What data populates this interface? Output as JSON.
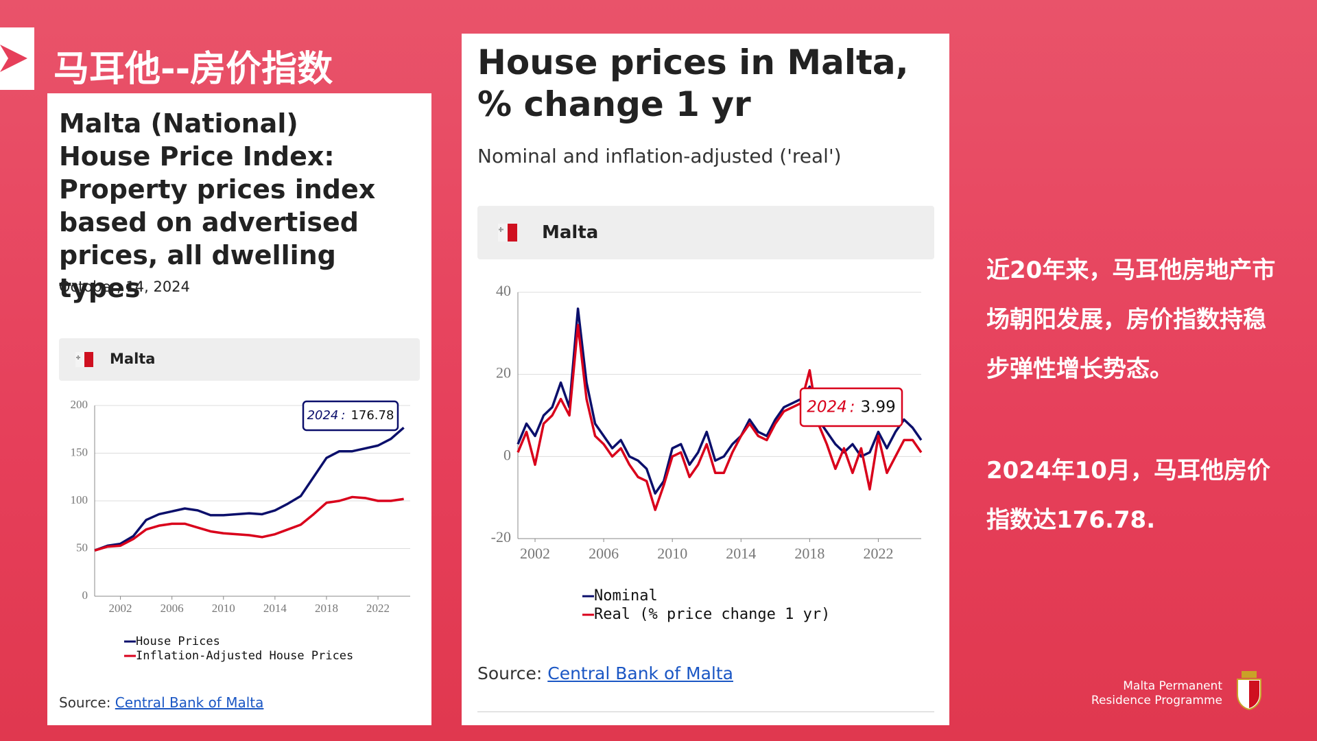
{
  "slide": {
    "title": "马耳他--房价指数",
    "paragraphs": [
      [
        "近20年来，马耳他房地产市",
        "场朝阳发展，房价指数持稳",
        "步弹性增长势态。"
      ],
      [
        "2024年10月，马耳他房价",
        "指数达176.78."
      ]
    ],
    "footer": [
      "Malta Permanent",
      "Residence Programme"
    ]
  },
  "chart_data": [
    {
      "type": "line",
      "title": "Malta (National) House Price Index: Property prices index based on advertised prices, all dwelling types",
      "date": "October, 14, 2024",
      "country": "Malta",
      "source_label": "Source:",
      "source_link": "Central Bank of Malta",
      "x": [
        2000,
        2001,
        2002,
        2003,
        2004,
        2005,
        2006,
        2007,
        2008,
        2009,
        2010,
        2011,
        2012,
        2013,
        2014,
        2015,
        2016,
        2017,
        2018,
        2019,
        2020,
        2021,
        2022,
        2023,
        2024
      ],
      "series": [
        {
          "name": "House Prices",
          "color": "#0b0f6b",
          "values": [
            48,
            53,
            55,
            63,
            80,
            86,
            89,
            92,
            90,
            85,
            85,
            86,
            87,
            86,
            90,
            97,
            105,
            125,
            145,
            152,
            152,
            155,
            158,
            165,
            176.78
          ]
        },
        {
          "name": "Inflation-Adjusted House Prices",
          "color": "#d9001b",
          "values": [
            48,
            52,
            53,
            60,
            70,
            74,
            76,
            76,
            72,
            68,
            66,
            65,
            64,
            62,
            65,
            70,
            75,
            86,
            98,
            100,
            104,
            103,
            100,
            100,
            102
          ]
        }
      ],
      "xlim": [
        2000,
        2024.5
      ],
      "ylim": [
        0,
        200
      ],
      "xticks": [
        2002,
        2006,
        2010,
        2014,
        2018,
        2022
      ],
      "yticks": [
        0,
        50,
        100,
        150,
        200
      ],
      "grid": true,
      "tooltip": {
        "x": 2024,
        "separator": ":",
        "value": 176.78
      }
    },
    {
      "type": "line",
      "title": "House prices in Malta, % change 1 yr",
      "subtitle": "Nominal and inflation-adjusted ('real')",
      "country": "Malta",
      "source_label": "Source:",
      "source_link": "Central Bank of Malta",
      "x": [
        2001,
        2001.5,
        2002,
        2002.5,
        2003,
        2003.5,
        2004,
        2004.5,
        2005,
        2005.5,
        2006,
        2006.5,
        2007,
        2007.5,
        2008,
        2008.5,
        2009,
        2009.5,
        2010,
        2010.5,
        2011,
        2011.5,
        2012,
        2012.5,
        2013,
        2013.5,
        2014,
        2014.5,
        2015,
        2015.5,
        2016,
        2016.5,
        2017,
        2017.5,
        2018,
        2018.5,
        2019,
        2019.5,
        2020,
        2020.5,
        2021,
        2021.5,
        2022,
        2022.5,
        2023,
        2023.5,
        2024,
        2024.5
      ],
      "series": [
        {
          "name": "Nominal",
          "color": "#0b0f6b",
          "values": [
            3,
            8,
            5,
            10,
            12,
            18,
            12,
            36,
            18,
            8,
            5,
            2,
            4,
            0,
            -1,
            -3,
            -9,
            -6,
            2,
            3,
            -2,
            1,
            6,
            -1,
            0,
            3,
            5,
            9,
            6,
            5,
            9,
            12,
            13,
            14,
            17,
            9,
            6,
            3,
            1,
            3,
            0,
            1,
            6,
            2,
            6,
            9,
            7,
            4
          ]
        },
        {
          "name": "Real (% price change 1 yr)",
          "color": "#d9001b",
          "values": [
            1,
            6,
            -2,
            8,
            10,
            14,
            10,
            32,
            14,
            5,
            3,
            0,
            2,
            -2,
            -5,
            -6,
            -13,
            -7,
            0,
            1,
            -5,
            -2,
            3,
            -4,
            -4,
            1,
            5,
            8,
            5,
            4,
            8,
            11,
            12,
            13,
            21,
            8,
            3,
            -3,
            2,
            -4,
            2,
            -8,
            5,
            -4,
            0,
            4,
            4,
            1
          ]
        }
      ],
      "xlim": [
        2001,
        2024.5
      ],
      "ylim": [
        -20,
        40
      ],
      "xticks": [
        2002,
        2006,
        2010,
        2014,
        2018,
        2022
      ],
      "yticks": [
        -20,
        0,
        20,
        40
      ],
      "grid": true,
      "tooltip": {
        "x": 2024,
        "separator": ":",
        "value": 3.99
      }
    }
  ]
}
